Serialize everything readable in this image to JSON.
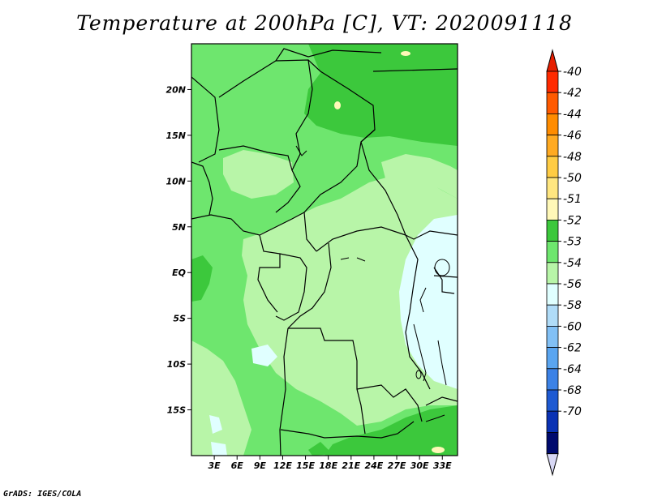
{
  "title": "Temperature at 200hPa [C], VT: 2020091118",
  "credit": "GrADS: IGES/COLA",
  "map": {
    "lon_range": [
      0,
      35
    ],
    "lat_range": [
      -20,
      25
    ],
    "lon_ticks": [
      "3E",
      "6E",
      "9E",
      "12E",
      "15E",
      "18E",
      "21E",
      "24E",
      "27E",
      "30E",
      "33E"
    ],
    "lat_ticks": [
      "20N",
      "15N",
      "10N",
      "5N",
      "EQ",
      "5S",
      "10S",
      "15S"
    ]
  },
  "colorbar": {
    "labels": [
      "-40",
      "-42",
      "-44",
      "-46",
      "-48",
      "-50",
      "-51",
      "-52",
      "-53",
      "-54",
      "-56",
      "-58",
      "-60",
      "-62",
      "-64",
      "-68",
      "-70"
    ],
    "colors": [
      "#ff2a00",
      "#ff5a00",
      "#ff8c00",
      "#ffaa22",
      "#ffcc44",
      "#ffe680",
      "#fff8b8",
      "#3cc83c",
      "#6ee66e",
      "#b8f5a8",
      "#e0ffff",
      "#b0dcf8",
      "#82c0f5",
      "#5aa5f0",
      "#3c82e6",
      "#1e5ad2",
      "#0a32b4",
      "#000a6e"
    ],
    "top_arrow_color": "#e61e00",
    "bottom_arrow_color": "#d8d8f5"
  },
  "fields": {
    "bg": "#6ee66e",
    "lighter": "#b8f5a8",
    "darker": "#3cc83c",
    "lightest": "#e0ffff",
    "warm": "#fff8b8",
    "border": "#000000"
  }
}
